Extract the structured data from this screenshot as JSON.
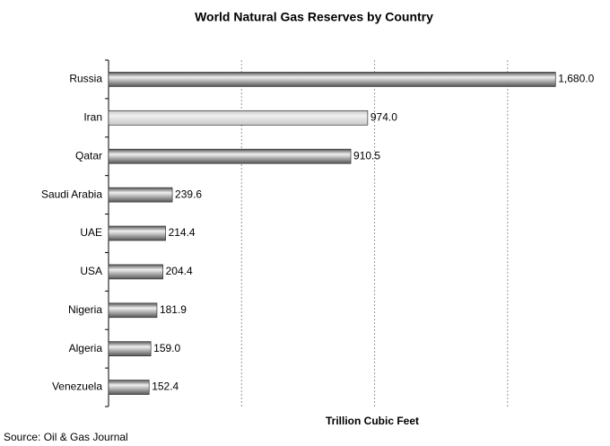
{
  "chart_data": {
    "type": "barh",
    "title": "World Natural Gas Reserves by Country",
    "categories": [
      "Russia",
      "Iran",
      "Qatar",
      "Saudi Arabia",
      "UAE",
      "USA",
      "Nigeria",
      "Algeria",
      "Venezuela"
    ],
    "values": [
      1680.0,
      974.0,
      910.5,
      239.6,
      214.4,
      204.4,
      181.9,
      159.0,
      152.4
    ],
    "value_labels": [
      "1,680.0",
      "974.0",
      "910.5",
      "239.6",
      "214.4",
      "204.4",
      "181.9",
      "159.0",
      "152.4"
    ],
    "colors": [
      "#555555",
      "#c8c8c8",
      "#555555",
      "#555555",
      "#555555",
      "#555555",
      "#555555",
      "#555555",
      "#555555"
    ],
    "xlabel": "Trillion Cubic Feet",
    "source": "Source: Oil & Gas Journal",
    "xlim": [
      0,
      1750
    ],
    "xticks": [
      0,
      500,
      1000,
      1500
    ],
    "grid": true
  }
}
